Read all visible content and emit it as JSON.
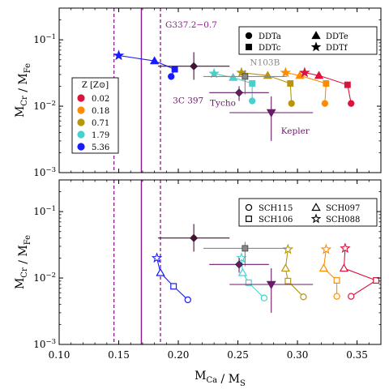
{
  "figure": {
    "xlabel": "M_Ca / M_S",
    "ylabel": "M_Cr / M_Fe",
    "x_ticks": [
      "0.10",
      "0.15",
      "0.20",
      "0.25",
      "0.30",
      "0.35"
    ],
    "y_ticks_top": [
      "10^-1",
      "10^-2",
      "10^-3"
    ],
    "y_ticks_bottom": [
      "10^-1",
      "10^-2",
      "10^-3"
    ]
  },
  "chart_data": [
    {
      "type": "scatter",
      "panel": "top",
      "xlim": [
        0.1,
        0.37
      ],
      "ylim": [
        0.001,
        0.3
      ],
      "yscale": "log",
      "xlabel": "M_Ca / M_S",
      "ylabel": "M_Cr / M_Fe",
      "vlines": {
        "G337.2-0.7": {
          "x": 0.169,
          "range": [
            0.146,
            0.185
          ],
          "color": "#8b1a8b",
          "label": "G337.2−0.7"
        }
      },
      "observations": [
        {
          "name": "3C 397",
          "x": 0.213,
          "xerr": 0.03,
          "y": 0.04,
          "yerr": [
            0.015,
            0.025
          ],
          "color": "#4b0d3a",
          "marker": "diamond"
        },
        {
          "name": "N103B",
          "x": 0.256,
          "xerr": 0.035,
          "y": 0.028,
          "yerr": [
            0.013,
            0.007
          ],
          "color": "#888888",
          "marker": "square"
        },
        {
          "name": "Tycho",
          "x": 0.251,
          "xerr": 0.025,
          "y": 0.016,
          "yerr": [
            0.004,
            0.004
          ],
          "color": "#6a1b6a",
          "marker": "diamond"
        },
        {
          "name": "Kepler",
          "x": 0.278,
          "xerr": 0.035,
          "y": 0.008,
          "yerr": [
            0.005,
            0.006
          ],
          "color": "#6a1b6a",
          "marker": "triangle-down"
        }
      ],
      "metallicity_legend": {
        "title": "Z [Z⊙]",
        "entries": [
          {
            "label": "0.02",
            "color": "#dc143c"
          },
          {
            "label": "0.18",
            "color": "#ff8c00"
          },
          {
            "label": "0.71",
            "color": "#b8960b"
          },
          {
            "label": "1.79",
            "color": "#48d1cc"
          },
          {
            "label": "5.36",
            "color": "#1a1aff"
          }
        ]
      },
      "model_legend": [
        {
          "label": "DDTa",
          "marker": "circle"
        },
        {
          "label": "DDTe",
          "marker": "triangle"
        },
        {
          "label": "DDTc",
          "marker": "square"
        },
        {
          "label": "DDTf",
          "marker": "star"
        }
      ],
      "series": [
        {
          "color": "#1a1aff",
          "points": [
            {
              "marker": "star",
              "x": 0.15,
              "y": 0.058
            },
            {
              "marker": "triangle",
              "x": 0.18,
              "y": 0.048
            },
            {
              "marker": "square",
              "x": 0.197,
              "y": 0.036
            },
            {
              "marker": "circle",
              "x": 0.194,
              "y": 0.028
            }
          ]
        },
        {
          "color": "#48d1cc",
          "points": [
            {
              "marker": "star",
              "x": 0.23,
              "y": 0.031
            },
            {
              "marker": "triangle",
              "x": 0.246,
              "y": 0.027
            },
            {
              "marker": "square",
              "x": 0.262,
              "y": 0.022
            },
            {
              "marker": "circle",
              "x": 0.262,
              "y": 0.012
            }
          ]
        },
        {
          "color": "#b8960b",
          "points": [
            {
              "marker": "star",
              "x": 0.253,
              "y": 0.032
            },
            {
              "marker": "triangle",
              "x": 0.275,
              "y": 0.029
            },
            {
              "marker": "square",
              "x": 0.294,
              "y": 0.022
            },
            {
              "marker": "circle",
              "x": 0.295,
              "y": 0.011
            }
          ]
        },
        {
          "color": "#ff8c00",
          "points": [
            {
              "marker": "star",
              "x": 0.29,
              "y": 0.032
            },
            {
              "marker": "triangle",
              "x": 0.302,
              "y": 0.029
            },
            {
              "marker": "square",
              "x": 0.324,
              "y": 0.022
            },
            {
              "marker": "circle",
              "x": 0.323,
              "y": 0.011
            }
          ]
        },
        {
          "color": "#dc143c",
          "points": [
            {
              "marker": "star",
              "x": 0.306,
              "y": 0.032
            },
            {
              "marker": "triangle",
              "x": 0.318,
              "y": 0.029
            },
            {
              "marker": "square",
              "x": 0.342,
              "y": 0.021
            },
            {
              "marker": "circle",
              "x": 0.345,
              "y": 0.011
            }
          ]
        }
      ]
    },
    {
      "type": "scatter",
      "panel": "bottom",
      "xlim": [
        0.1,
        0.37
      ],
      "ylim": [
        0.001,
        0.3
      ],
      "yscale": "log",
      "xlabel": "M_Ca / M_S",
      "ylabel": "M_Cr / M_Fe",
      "vlines": {
        "x": 0.169,
        "range": [
          0.146,
          0.185
        ],
        "color": "#8b1a8b"
      },
      "observations": [
        {
          "x": 0.213,
          "xerr": 0.03,
          "y": 0.04,
          "yerr": [
            0.015,
            0.025
          ],
          "color": "#4b0d3a",
          "marker": "diamond"
        },
        {
          "x": 0.256,
          "xerr": 0.035,
          "y": 0.028,
          "yerr": [
            0.013,
            0.007
          ],
          "color": "#888888",
          "marker": "square"
        },
        {
          "x": 0.251,
          "xerr": 0.025,
          "y": 0.016,
          "yerr": [
            0.004,
            0.004
          ],
          "color": "#6a1b6a",
          "marker": "diamond"
        },
        {
          "x": 0.278,
          "xerr": 0.035,
          "y": 0.008,
          "yerr": [
            0.005,
            0.006
          ],
          "color": "#6a1b6a",
          "marker": "triangle-down"
        }
      ],
      "model_legend": [
        {
          "label": "SCH115",
          "marker": "circle"
        },
        {
          "label": "SCH097",
          "marker": "triangle"
        },
        {
          "label": "SCH106",
          "marker": "square"
        },
        {
          "label": "SCH088",
          "marker": "star"
        }
      ],
      "series": [
        {
          "color": "#1a1aff",
          "points": [
            {
              "marker": "star",
              "x": 0.182,
              "y": 0.02
            },
            {
              "marker": "triangle",
              "x": 0.185,
              "y": 0.012
            },
            {
              "marker": "square",
              "x": 0.196,
              "y": 0.0075
            },
            {
              "marker": "circle",
              "x": 0.208,
              "y": 0.0047
            }
          ]
        },
        {
          "color": "#48d1cc",
          "points": [
            {
              "marker": "star",
              "x": 0.253,
              "y": 0.02
            },
            {
              "marker": "triangle",
              "x": 0.254,
              "y": 0.012
            },
            {
              "marker": "square",
              "x": 0.259,
              "y": 0.0085
            },
            {
              "marker": "circle",
              "x": 0.272,
              "y": 0.005
            }
          ]
        },
        {
          "color": "#b8960b",
          "points": [
            {
              "marker": "star",
              "x": 0.292,
              "y": 0.027
            },
            {
              "marker": "triangle",
              "x": 0.29,
              "y": 0.014
            },
            {
              "marker": "square",
              "x": 0.292,
              "y": 0.009
            },
            {
              "marker": "circle",
              "x": 0.305,
              "y": 0.0052
            }
          ]
        },
        {
          "color": "#ff8c00",
          "points": [
            {
              "marker": "star",
              "x": 0.324,
              "y": 0.027
            },
            {
              "marker": "triangle",
              "x": 0.322,
              "y": 0.014
            },
            {
              "marker": "square",
              "x": 0.333,
              "y": 0.0092
            },
            {
              "marker": "circle",
              "x": 0.333,
              "y": 0.0053
            }
          ]
        },
        {
          "color": "#dc143c",
          "points": [
            {
              "marker": "star",
              "x": 0.34,
              "y": 0.028
            },
            {
              "marker": "triangle",
              "x": 0.339,
              "y": 0.014
            },
            {
              "marker": "square",
              "x": 0.366,
              "y": 0.0092
            },
            {
              "marker": "circle",
              "x": 0.345,
              "y": 0.0053
            }
          ]
        }
      ]
    }
  ]
}
